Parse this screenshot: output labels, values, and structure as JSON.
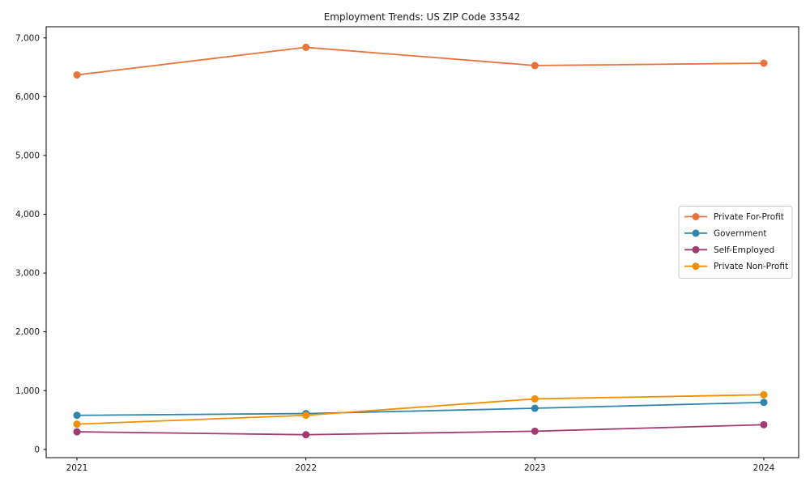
{
  "chart_data": {
    "type": "line",
    "title": "Employment Trends: US ZIP Code 33542",
    "xlabel": "",
    "ylabel": "",
    "x": [
      2021,
      2022,
      2023,
      2024
    ],
    "x_tick_labels": [
      "2021",
      "2022",
      "2023",
      "2024"
    ],
    "y_ticks": [
      0,
      1000,
      2000,
      3000,
      4000,
      5000,
      6000,
      7000
    ],
    "y_tick_labels": [
      "0",
      "1,000",
      "2,000",
      "3,000",
      "4,000",
      "5,000",
      "6,000",
      "7,000"
    ],
    "ylim": [
      -140,
      7190
    ],
    "grid": false,
    "legend_position": "center-right",
    "frame_color": "#000000",
    "legend_border_color": "#cccccc",
    "series": [
      {
        "name": "Private For-Profit",
        "color": "#e8743b",
        "values": [
          6370,
          6840,
          6530,
          6570
        ]
      },
      {
        "name": "Government",
        "color": "#2e86ab",
        "values": [
          580,
          610,
          700,
          800
        ]
      },
      {
        "name": "Self-Employed",
        "color": "#a23b72",
        "values": [
          300,
          250,
          310,
          420
        ]
      },
      {
        "name": "Private Non-Profit",
        "color": "#f18f01",
        "values": [
          430,
          580,
          860,
          930
        ]
      }
    ]
  }
}
